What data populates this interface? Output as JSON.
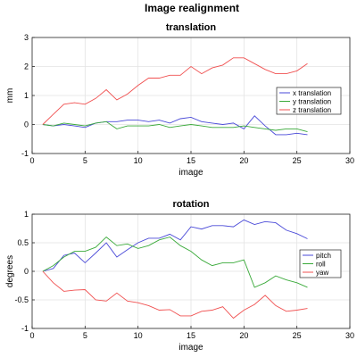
{
  "figure_title": "Image realignment",
  "chart_data": [
    {
      "type": "line",
      "title": "translation",
      "xlabel": "image",
      "ylabel": "mm",
      "xlim": [
        0,
        30
      ],
      "ylim": [
        -1,
        3
      ],
      "xticks": [
        0,
        5,
        10,
        15,
        20,
        25,
        30
      ],
      "yticks": [
        -1,
        0,
        1,
        2,
        3
      ],
      "grid": true,
      "legend_position": "right",
      "x": [
        1,
        2,
        3,
        4,
        5,
        6,
        7,
        8,
        9,
        10,
        11,
        12,
        13,
        14,
        15,
        16,
        17,
        18,
        19,
        20,
        21,
        22,
        23,
        24,
        25,
        26
      ],
      "series": [
        {
          "name": "x translation",
          "color": "#4a4ad8",
          "values": [
            0,
            -0.05,
            0,
            -0.05,
            -0.1,
            0.05,
            0.1,
            0.1,
            0.15,
            0.15,
            0.1,
            0.15,
            0.05,
            0.2,
            0.25,
            0.1,
            0.05,
            0,
            0.05,
            -0.15,
            0.3,
            -0.05,
            -0.35,
            -0.35,
            -0.3,
            -0.35
          ]
        },
        {
          "name": "y translation",
          "color": "#3aaa3a",
          "values": [
            0,
            -0.05,
            0.05,
            0,
            -0.05,
            0.05,
            0.1,
            -0.15,
            -0.05,
            -0.05,
            -0.05,
            0,
            -0.1,
            -0.05,
            0,
            -0.05,
            -0.1,
            -0.1,
            -0.1,
            -0.05,
            -0.1,
            -0.15,
            -0.2,
            -0.15,
            -0.15,
            -0.25
          ]
        },
        {
          "name": "z translation",
          "color": "#f05050",
          "values": [
            0,
            0.35,
            0.7,
            0.75,
            0.7,
            0.9,
            1.2,
            0.85,
            1.05,
            1.35,
            1.6,
            1.6,
            1.7,
            1.7,
            2.0,
            1.75,
            1.95,
            2.05,
            2.3,
            2.3,
            2.1,
            1.9,
            1.75,
            1.75,
            1.85,
            2.1
          ]
        }
      ]
    },
    {
      "type": "line",
      "title": "rotation",
      "xlabel": "image",
      "ylabel": "degrees",
      "xlim": [
        0,
        30
      ],
      "ylim": [
        -1,
        1
      ],
      "xticks": [
        0,
        5,
        10,
        15,
        20,
        25,
        30
      ],
      "yticks": [
        -1,
        -0.5,
        0,
        0.5,
        1
      ],
      "grid": true,
      "legend_position": "right",
      "x": [
        1,
        2,
        3,
        4,
        5,
        6,
        7,
        8,
        9,
        10,
        11,
        12,
        13,
        14,
        15,
        16,
        17,
        18,
        19,
        20,
        21,
        22,
        23,
        24,
        25,
        26
      ],
      "series": [
        {
          "name": "pitch",
          "color": "#4a4ad8",
          "values": [
            0,
            0.05,
            0.28,
            0.32,
            0.15,
            0.32,
            0.5,
            0.25,
            0.38,
            0.5,
            0.58,
            0.58,
            0.65,
            0.55,
            0.78,
            0.74,
            0.8,
            0.8,
            0.78,
            0.9,
            0.82,
            0.87,
            0.85,
            0.72,
            0.66,
            0.57
          ]
        },
        {
          "name": "roll",
          "color": "#3aaa3a",
          "values": [
            0,
            0.1,
            0.25,
            0.35,
            0.35,
            0.42,
            0.6,
            0.45,
            0.48,
            0.4,
            0.45,
            0.55,
            0.6,
            0.45,
            0.35,
            0.2,
            0.1,
            0.15,
            0.15,
            0.2,
            -0.28,
            -0.2,
            -0.08,
            -0.15,
            -0.2,
            -0.28
          ]
        },
        {
          "name": "yaw",
          "color": "#f05050",
          "values": [
            0,
            -0.2,
            -0.35,
            -0.33,
            -0.32,
            -0.5,
            -0.52,
            -0.38,
            -0.52,
            -0.55,
            -0.6,
            -0.68,
            -0.67,
            -0.78,
            -0.78,
            -0.7,
            -0.68,
            -0.62,
            -0.82,
            -0.68,
            -0.58,
            -0.42,
            -0.6,
            -0.7,
            -0.68,
            -0.65
          ]
        }
      ]
    }
  ]
}
